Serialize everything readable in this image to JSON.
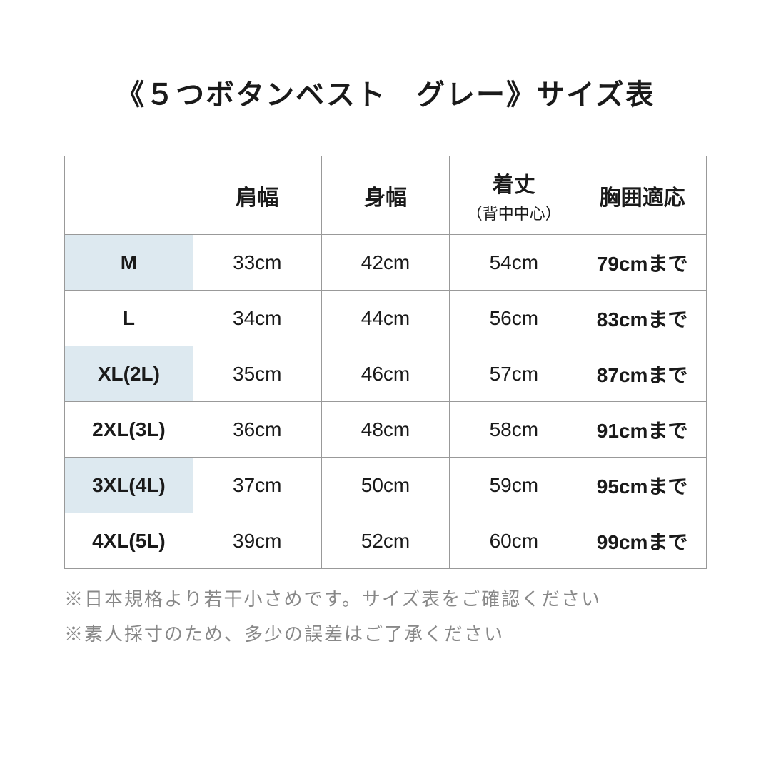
{
  "title": "《５つボタンベスト　グレー》サイズ表",
  "table": {
    "headers": {
      "blank": "",
      "shoulder": "肩幅",
      "width": "身幅",
      "length": "着丈",
      "length_sub": "（背中中心）",
      "chest": "胸囲適応"
    },
    "rows": [
      {
        "size": "M",
        "shoulder": "33cm",
        "width": "42cm",
        "length": "54cm",
        "chest": "79cmまで",
        "shade": true
      },
      {
        "size": "L",
        "shoulder": "34cm",
        "width": "44cm",
        "length": "56cm",
        "chest": "83cmまで",
        "shade": false
      },
      {
        "size": "XL(2L)",
        "shoulder": "35cm",
        "width": "46cm",
        "length": "57cm",
        "chest": "87cmまで",
        "shade": true
      },
      {
        "size": "2XL(3L)",
        "shoulder": "36cm",
        "width": "48cm",
        "length": "58cm",
        "chest": "91cmまで",
        "shade": false
      },
      {
        "size": "3XL(4L)",
        "shoulder": "37cm",
        "width": "50cm",
        "length": "59cm",
        "chest": "95cmまで",
        "shade": true
      },
      {
        "size": "4XL(5L)",
        "shoulder": "39cm",
        "width": "52cm",
        "length": "60cm",
        "chest": "99cmまで",
        "shade": false
      }
    ]
  },
  "notes": {
    "line1": "※日本規格より若干小さめです。サイズ表をご確認ください",
    "line2": "※素人採寸のため、多少の誤差はご了承ください"
  },
  "colors": {
    "shade_bg": "#dde9f0",
    "border": "#999999",
    "text": "#1a1a1a",
    "note_text": "#888888",
    "background": "#ffffff"
  }
}
